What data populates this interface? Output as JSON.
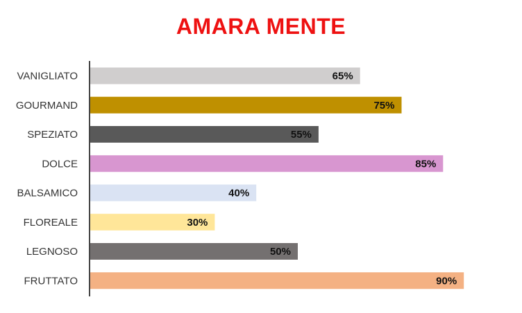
{
  "chart_data": {
    "type": "bar",
    "orientation": "horizontal",
    "title": "AMARA MENTE",
    "categories": [
      "VANIGLIATO",
      "GOURMAND",
      "SPEZIATO",
      "DOLCE",
      "BALSAMICO",
      "FLOREALE",
      "LEGNOSO",
      "FRUTTATO"
    ],
    "values": [
      65,
      75,
      55,
      85,
      40,
      30,
      50,
      90
    ],
    "value_labels": [
      "65%",
      "75%",
      "55%",
      "85%",
      "40%",
      "30%",
      "50%",
      "90%"
    ],
    "colors": [
      "#d0cece",
      "#bf9000",
      "#595959",
      "#d896d0",
      "#dae3f3",
      "#ffe699",
      "#747070",
      "#f4b183"
    ],
    "xlim": [
      0,
      100
    ],
    "grid": false,
    "legend": "none",
    "title_color": "#ee1111"
  }
}
